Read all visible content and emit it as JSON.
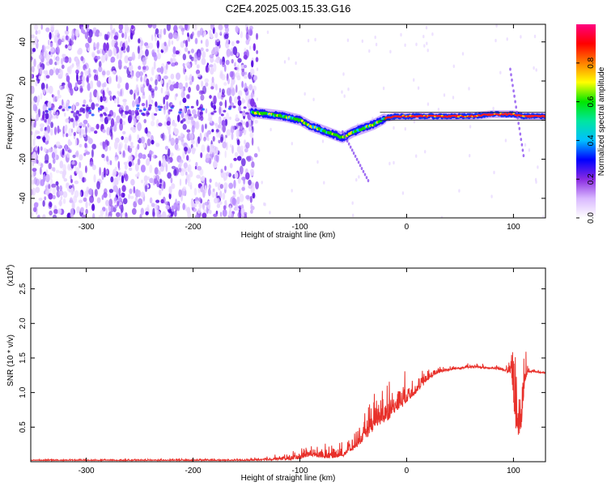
{
  "title": "C2E4.2025.003.15.33.G16",
  "chart_data": [
    {
      "type": "heatmap",
      "title": "C2E4.2025.003.15.33.G16",
      "xlabel": "Height of straight line (km)",
      "ylabel": "Frequency (Hz)",
      "xlim": [
        -352,
        130
      ],
      "ylim": [
        -50,
        49
      ],
      "xticks": [
        -300,
        -200,
        -100,
        0,
        100
      ],
      "yticks": [
        -40,
        -20,
        0,
        20,
        40
      ],
      "grid": false,
      "colorbar": {
        "label": "Normalized spectral amplitude",
        "range": [
          0,
          1
        ],
        "ticks": [
          "0.0",
          "0.2",
          "0.4",
          "0.6",
          "0.8"
        ],
        "colors": [
          "#ffffff",
          "#d9b8ff",
          "#8a2be2",
          "#0000ff",
          "#00bfff",
          "#00e6a0",
          "#00e600",
          "#ffff00",
          "#ff8000",
          "#ff0000",
          "#ff0080"
        ]
      },
      "ridge": {
        "name": "main frequency ridge",
        "x": [
          -145,
          -130,
          -115,
          -100,
          -90,
          -80,
          -70,
          -60,
          -50,
          -40,
          -30,
          -20,
          -10,
          0,
          20,
          40,
          60,
          80,
          100,
          110,
          120,
          130
        ],
        "y": [
          4,
          3,
          2,
          0,
          -3,
          -5,
          -7,
          -9,
          -6,
          -4,
          -2,
          1,
          2,
          2,
          2,
          2,
          2,
          3,
          3,
          2,
          2,
          2
        ]
      }
    },
    {
      "type": "line",
      "xlabel": "Height of straight line (km)",
      "ylabel": "SNR (10 * v/v)",
      "scale_label": "(x10",
      "scale_exp": "4",
      "scale_close": ")",
      "xlim": [
        -352,
        130
      ],
      "ylim": [
        0,
        2.8
      ],
      "xticks": [
        -300,
        -200,
        -100,
        0,
        100
      ],
      "yticks": [
        "0.5",
        "1.0",
        "1.5",
        "2.0",
        "2.5"
      ],
      "series": [
        {
          "color": "#e8302a",
          "envelope": {
            "x": [
              -352,
              -150,
              -110,
              -100,
              -90,
              -80,
              -70,
              -60,
              -50,
              -40,
              -30,
              -20,
              -10,
              0,
              10,
              20,
              30,
              40,
              50,
              60,
              70,
              80,
              90,
              98,
              101,
              104,
              107,
              110,
              113,
              120,
              130
            ],
            "base": [
              0.02,
              0.02,
              0.04,
              0.06,
              0.1,
              0.08,
              0.08,
              0.1,
              0.2,
              0.35,
              0.55,
              0.65,
              0.8,
              0.9,
              1.05,
              1.2,
              1.3,
              1.33,
              1.35,
              1.37,
              1.36,
              1.35,
              1.33,
              1.3,
              0.9,
              0.4,
              0.6,
              1.1,
              1.3,
              1.3,
              1.28
            ],
            "spread": [
              0.02,
              0.03,
              0.1,
              0.15,
              0.22,
              0.2,
              0.2,
              0.2,
              0.25,
              0.35,
              0.55,
              0.6,
              0.55,
              0.4,
              0.3,
              0.18,
              0.12,
              0.08,
              0.06,
              0.06,
              0.06,
              0.06,
              0.07,
              0.3,
              1.5,
              1.4,
              1.2,
              0.8,
              0.1,
              0.04,
              0.03
            ]
          }
        }
      ]
    }
  ]
}
